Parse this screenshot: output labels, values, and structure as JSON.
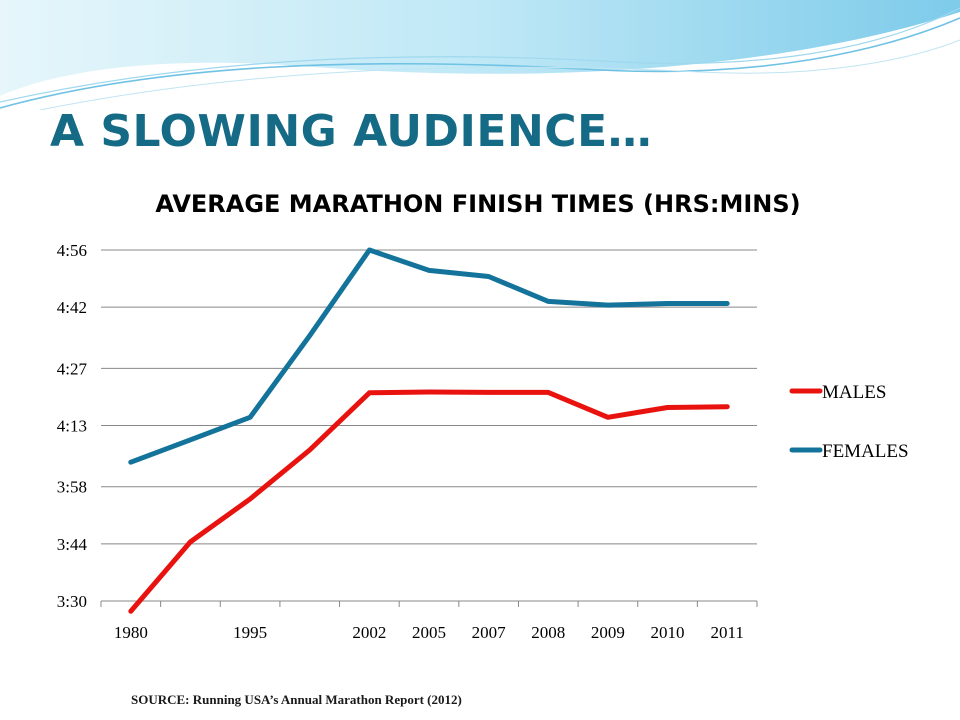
{
  "slide": {
    "title": "A SLOWING AUDIENCE…",
    "source": "SOURCE: Running USA’s Annual Marathon Report (2012)"
  },
  "colors": {
    "title": "#156a86",
    "males": "#e8130f",
    "females": "#14739b",
    "gridline": "#888888",
    "wave_light": "#cfeef8",
    "wave_mid": "#8fd3ec"
  },
  "chart_data": {
    "type": "line",
    "title": "AVERAGE MARATHON FINISH TIMES (HRS:MINS)",
    "xlabel": "",
    "ylabel": "",
    "categories": [
      "1980",
      "",
      "1995",
      "",
      "2002",
      "2005",
      "2007",
      "2008",
      "2009",
      "2010",
      "2011"
    ],
    "y_ticks": [
      "3:30",
      "3:44",
      "3:58",
      "4:13",
      "4:27",
      "4:42",
      "4:56"
    ],
    "y_tick_minutes": [
      210,
      224,
      238,
      253,
      267,
      282,
      296
    ],
    "ylim_minutes": [
      210,
      296
    ],
    "grid": true,
    "legend_position": "right",
    "series": [
      {
        "name": "MALES",
        "color": "#e8130f",
        "values_minutes": [
          207.5,
          224.5,
          235,
          247,
          261,
          261.2,
          261.1,
          261.1,
          255,
          257.4,
          257.6
        ]
      },
      {
        "name": "FEMALES",
        "color": "#14739b",
        "values_minutes": [
          244,
          249.5,
          255,
          275,
          296,
          291,
          289.5,
          283.4,
          282.5,
          282.9,
          282.9
        ]
      }
    ]
  }
}
